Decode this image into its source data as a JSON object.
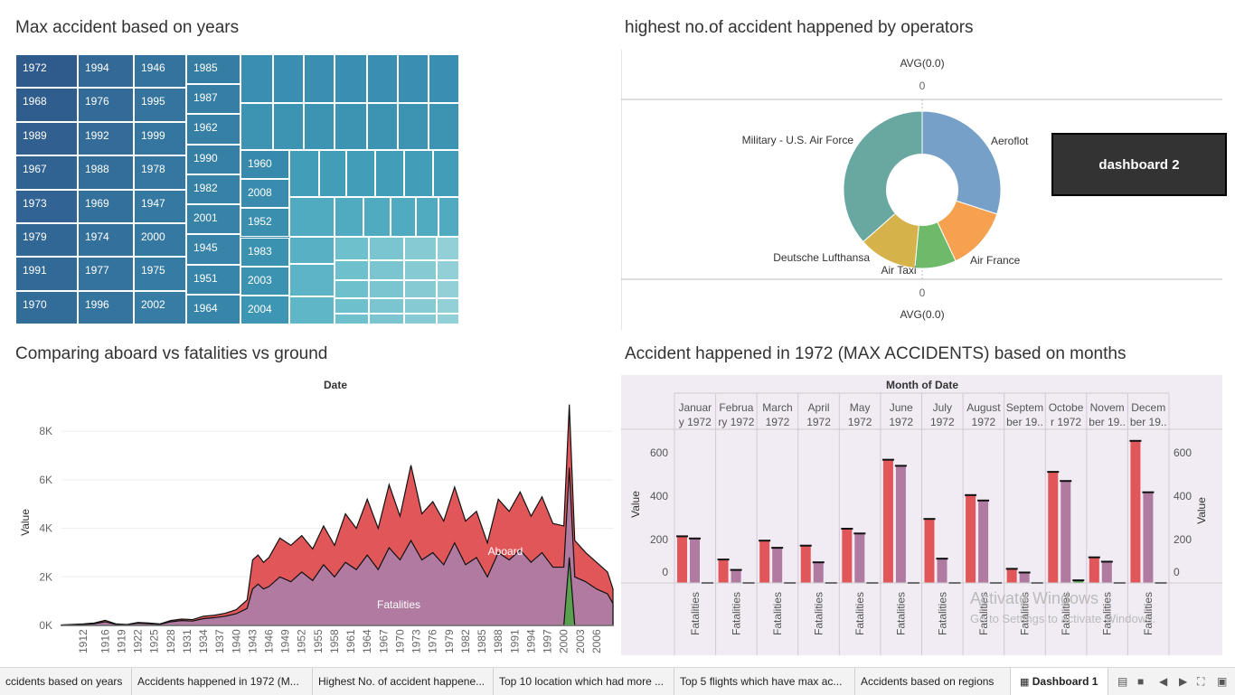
{
  "titles": {
    "treemap": "Max accident based on years",
    "donut": "highest  no.of accident happened by operators",
    "area": "Comparing  aboard  vs fatalities  vs ground",
    "bars": "Accident happened in 1972 (MAX ACCIDENTS) based on months"
  },
  "treemap": {
    "col1": [
      "1972",
      "1968",
      "1989",
      "1967",
      "1973",
      "1979",
      "1991",
      "1970"
    ],
    "col2": [
      "1994",
      "1976",
      "1992",
      "1988",
      "1969",
      "1974",
      "1977",
      "1996"
    ],
    "col3": [
      "1946",
      "1995",
      "1999",
      "1978",
      "1947",
      "2000",
      "1975",
      "2002"
    ],
    "col4": [
      "1985",
      "1987",
      "1962",
      "1990",
      "1982",
      "2001",
      "1945",
      "1951",
      "1964"
    ],
    "col5": [
      "1960",
      "2008",
      "1952",
      "1983",
      "2003",
      "2004"
    ]
  },
  "donut": {
    "top_axis_label": "AVG(0.0)",
    "top_axis_tick": "0",
    "bottom_axis_tick": "0",
    "bottom_axis_label": "AVG(0.0)",
    "slices": [
      {
        "name": "Aeroflot",
        "share": 0.3,
        "color": "#76a0c8"
      },
      {
        "name": "Air France",
        "share": 0.13,
        "color": "#f6a14f"
      },
      {
        "name": "Air Taxi",
        "share": 0.085,
        "color": "#6dbb6a"
      },
      {
        "name": "Deutsche Lufthansa",
        "share": 0.12,
        "color": "#d5b34a"
      },
      {
        "name": "Military - U.S. Air Force",
        "share": 0.365,
        "color": "#69a8a1"
      }
    ]
  },
  "dashboard_button": "dashboard 2",
  "chart_data": [
    {
      "type": "area",
      "title": "Comparing  aboard  vs fatalities  vs ground",
      "xlabel": "Date",
      "ylabel": "Value",
      "ylim": [
        0,
        9200
      ],
      "ytick_labels": [
        "0K",
        "2K",
        "4K",
        "6K",
        "8K"
      ],
      "xtick_labels": [
        "1912",
        "1916",
        "1919",
        "1922",
        "1925",
        "1928",
        "1931",
        "1934",
        "1937",
        "1940",
        "1943",
        "1946",
        "1949",
        "1952",
        "1955",
        "1958",
        "1961",
        "1964",
        "1967",
        "1970",
        "1973",
        "1976",
        "1979",
        "1982",
        "1985",
        "1988",
        "1991",
        "1994",
        "1997",
        "2000",
        "2003",
        "2006"
      ],
      "x": [
        1908,
        1912,
        1914,
        1916,
        1918,
        1920,
        1922,
        1924,
        1926,
        1928,
        1930,
        1932,
        1934,
        1936,
        1938,
        1940,
        1942,
        1943,
        1944,
        1945,
        1946,
        1948,
        1950,
        1952,
        1954,
        1956,
        1958,
        1960,
        1962,
        1964,
        1966,
        1968,
        1970,
        1972,
        1974,
        1976,
        1978,
        1980,
        1982,
        1984,
        1986,
        1988,
        1990,
        1992,
        1994,
        1996,
        1998,
        2000,
        2001,
        2002,
        2004,
        2006,
        2008,
        2009
      ],
      "series": [
        {
          "name": "Aboard",
          "color": "#e15759",
          "values": [
            20,
            60,
            100,
            210,
            60,
            40,
            120,
            100,
            60,
            200,
            260,
            240,
            380,
            420,
            500,
            650,
            1050,
            2700,
            2900,
            2600,
            2800,
            3600,
            3300,
            3700,
            3150,
            4100,
            3300,
            4600,
            4000,
            5200,
            4000,
            5800,
            4500,
            6600,
            4600,
            5100,
            4300,
            5700,
            4300,
            4700,
            3400,
            5200,
            4700,
            5500,
            4500,
            5300,
            4200,
            4100,
            9100,
            3500,
            3000,
            2600,
            2200,
            1500
          ]
        },
        {
          "name": "Fatalities",
          "color": "#b07aa1",
          "values": [
            15,
            40,
            70,
            150,
            40,
            30,
            90,
            70,
            40,
            150,
            200,
            180,
            280,
            320,
            380,
            480,
            700,
            1500,
            1700,
            1500,
            1600,
            2000,
            1800,
            2200,
            1850,
            2500,
            2000,
            2600,
            2300,
            2900,
            2300,
            3200,
            2700,
            3500,
            2700,
            3000,
            2500,
            3400,
            2500,
            2800,
            2000,
            3000,
            2700,
            3100,
            2600,
            3000,
            2400,
            2400,
            6500,
            2000,
            1800,
            1500,
            1300,
            900
          ]
        },
        {
          "name": "Ground",
          "color": "#59a14f",
          "values": [
            0,
            0,
            0,
            0,
            0,
            0,
            0,
            0,
            0,
            0,
            0,
            0,
            0,
            0,
            0,
            0,
            0,
            0,
            0,
            0,
            0,
            0,
            0,
            0,
            0,
            0,
            0,
            0,
            0,
            0,
            0,
            0,
            0,
            0,
            0,
            0,
            0,
            0,
            0,
            0,
            0,
            0,
            0,
            0,
            0,
            0,
            0,
            0,
            2800,
            0,
            0,
            0,
            0,
            0
          ]
        }
      ],
      "visible_series_labels": [
        "Aboard",
        "Fatalities"
      ]
    },
    {
      "type": "bar",
      "title": "Accident happened in 1972 (MAX ACCIDENTS) based on months",
      "header": "Month of Date",
      "ylabel": "Value",
      "ylim": [
        -10,
        700
      ],
      "ytick_labels": [
        "0",
        "200",
        "400",
        "600"
      ],
      "categories": [
        "January 1972",
        "February 1972",
        "March 1972",
        "April 1972",
        "May 1972",
        "June 1972",
        "July 1972",
        "August 1972",
        "September 1972",
        "October 1972",
        "November 1972",
        "December 1972"
      ],
      "category_labels": [
        [
          "Januar",
          "y 1972"
        ],
        [
          "Februa",
          "ry 1972"
        ],
        [
          "March",
          "1972"
        ],
        [
          "April",
          "1972"
        ],
        [
          "May",
          "1972"
        ],
        [
          "June",
          "1972"
        ],
        [
          "July",
          "1972"
        ],
        [
          "August",
          "1972"
        ],
        [
          "Septem",
          "ber 19.."
        ],
        [
          "Octobe",
          "r 1972"
        ],
        [
          "Novem",
          "ber 19.."
        ],
        [
          "Decem",
          "ber 19.."
        ]
      ],
      "row_label": "Fatalities",
      "series": [
        {
          "name": "Aboard",
          "color": "#e15759",
          "values": [
            215,
            108,
            195,
            172,
            250,
            568,
            295,
            405,
            65,
            512,
            118,
            655
          ]
        },
        {
          "name": "Fatalities",
          "color": "#b07aa1",
          "values": [
            205,
            60,
            162,
            95,
            228,
            540,
            112,
            380,
            48,
            470,
            98,
            418
          ]
        },
        {
          "name": "Ground",
          "color": "#59a14f",
          "values": [
            0,
            0,
            0,
            0,
            0,
            0,
            0,
            0,
            0,
            12,
            0,
            0
          ]
        }
      ]
    }
  ],
  "tabs": [
    "ccidents based on years",
    "Accidents happened in 1972 (M...",
    "Highest No. of accident happene...",
    "Top 10 location which had more ...",
    "Top 5 flights which have max ac...",
    "Accidents based on regions",
    "Dashboard 1"
  ],
  "watermark": {
    "line1": "Activate Windows",
    "line2": "Go to Settings to activate Windows."
  },
  "icons": [
    "dashboard-icon",
    "grid-view-icon",
    "list-view-icon",
    "prev-icon",
    "next-icon",
    "fullscreen-icon",
    "present-icon"
  ]
}
